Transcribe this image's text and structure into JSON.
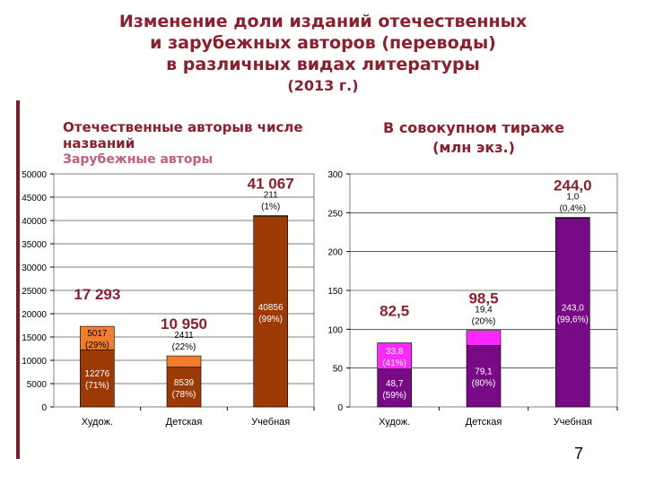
{
  "title": {
    "lines": [
      "Изменение доли изданий отечественных",
      "и зарубежных авторов (переводы)",
      "в различных видах литературы"
    ],
    "year": "(2013 г.)"
  },
  "left_heading": {
    "line1": "Отечественные авторыв числе названий",
    "line2": "Зарубежные авторы"
  },
  "right_heading": {
    "line1": "В совокупном тираже",
    "line2": "(млн экз.)"
  },
  "page_number": "7",
  "colors": {
    "domestic_left": "#9c3a06",
    "foreign_left": "#f07e2c",
    "domestic_right": "#780a86",
    "foreign_right": "#ff28ff",
    "title": "#8b1f2e"
  },
  "chart_data": [
    {
      "type": "bar",
      "stacked": true,
      "categories": [
        "Худож.",
        "Детская",
        "Учебная"
      ],
      "ylim": [
        0,
        50000
      ],
      "yticks": [
        "0",
        "5000",
        "10000",
        "15000",
        "20000",
        "25000",
        "30000",
        "35000",
        "40000",
        "45000",
        "50000"
      ],
      "series": [
        {
          "name": "Отечественные авторы",
          "values": [
            12276,
            8539,
            40856
          ],
          "labels": [
            "12276",
            "8539",
            "40856"
          ],
          "pct": [
            "(71%)",
            "(78%)",
            "(99%)"
          ]
        },
        {
          "name": "Зарубежные авторы",
          "values": [
            5017,
            2411,
            211
          ],
          "labels": [
            "5017",
            "2411",
            "211"
          ],
          "pct": [
            "(29%)",
            "(22%)",
            "(1%)"
          ]
        }
      ],
      "totals": [
        "17 293",
        "10 950",
        "41 067"
      ]
    },
    {
      "type": "bar",
      "stacked": true,
      "categories": [
        "Худож.",
        "Детская",
        "Учебная"
      ],
      "ylim": [
        0,
        300
      ],
      "yticks": [
        "0",
        "50",
        "100",
        "150",
        "200",
        "250",
        "300"
      ],
      "series": [
        {
          "name": "Отечественные авторы",
          "values": [
            48.7,
            79.1,
            243.0
          ],
          "labels": [
            "48,7",
            "79,1",
            "243,0"
          ],
          "pct": [
            "(59%)",
            "(80%)",
            "(99,6%)"
          ]
        },
        {
          "name": "Зарубежные авторы",
          "values": [
            33.8,
            19.4,
            1.0
          ],
          "labels": [
            "33,8",
            "19,4",
            "1,0"
          ],
          "pct": [
            "(41%)",
            "(20%)",
            "(0,4%)"
          ]
        }
      ],
      "totals": [
        "82,5",
        "98,5",
        "244,0"
      ]
    }
  ]
}
